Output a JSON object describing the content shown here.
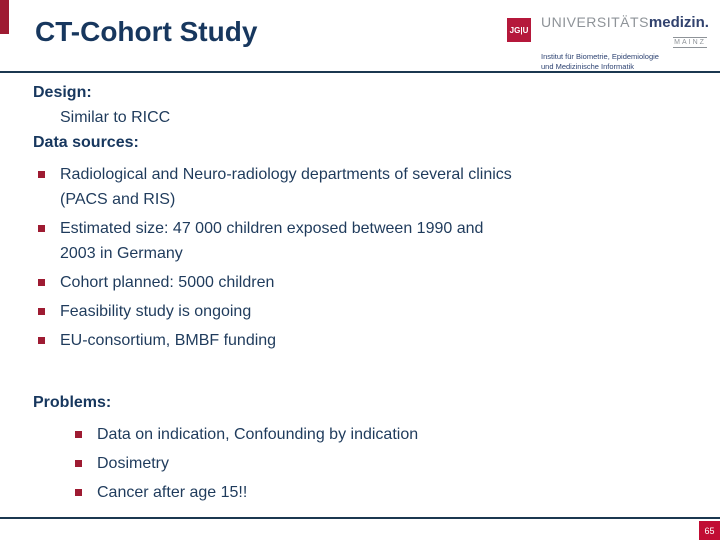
{
  "header": {
    "title": "CT-Cohort Study",
    "logo": {
      "jgu_label": "JG|U",
      "universitaets": "UNIVERSITÄTS",
      "medizin": "medizin.",
      "mainz": "MAINZ",
      "institute": "Institut für Biometrie, Epidemiologie\nund Medizinische Informatik"
    }
  },
  "body": {
    "design_label": "Design:",
    "design_item": "Similar to RICC",
    "data_sources_label": "Data sources:",
    "bullets": [
      "Radiological and Neuro-radiology departments of several clinics\n(PACS and RIS)",
      "Estimated size: 47 000 children exposed between 1990 and\n2003  in Germany",
      "Cohort planned: 5000 children",
      "Feasibility study is ongoing",
      "EU-consortium, BMBF funding"
    ],
    "problems_label": "Problems:",
    "problem_bullets": [
      "Data on indication, Confounding by indication",
      "Dosimetry",
      "Cancer after age 15!!"
    ]
  },
  "footer": {
    "page_number": "65"
  },
  "colors": {
    "title_navy": "#17375e",
    "body_navy": "#1f3b5c",
    "bullet_red": "#9e1b32",
    "logo_red": "#b5183b",
    "page_box_red": "#c10d34",
    "logo_gray": "#8e9398",
    "rule_navy": "#1b3850"
  }
}
